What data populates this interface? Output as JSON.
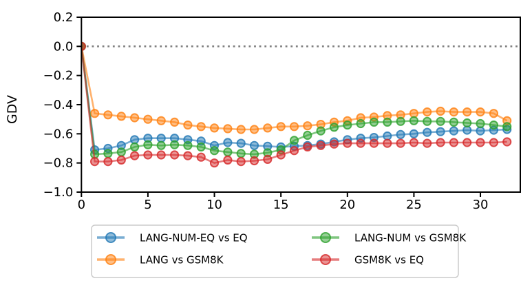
{
  "chart_data": {
    "type": "line",
    "ylabel": "GDV",
    "xlabel": "",
    "xlim": [
      0,
      33
    ],
    "ylim": [
      -1.0,
      0.2
    ],
    "x_ticks": [
      0,
      5,
      10,
      15,
      20,
      25,
      30
    ],
    "x_tick_labels": [
      "0",
      "5",
      "10",
      "15",
      "20",
      "25",
      "30"
    ],
    "y_ticks": [
      0.2,
      0.0,
      -0.2,
      -0.4,
      -0.6,
      -0.8,
      -1.0
    ],
    "y_tick_labels": [
      "0.2",
      "0.0",
      "−0.2",
      "−0.4",
      "−0.6",
      "−0.8",
      "−1.0"
    ],
    "grid": false,
    "zero_line": {
      "y": 0.0,
      "style": "dotted",
      "color": "#7f7f7f"
    },
    "x": [
      0,
      1,
      2,
      3,
      4,
      5,
      6,
      7,
      8,
      9,
      10,
      11,
      12,
      13,
      14,
      15,
      16,
      17,
      18,
      19,
      20,
      21,
      22,
      23,
      24,
      25,
      26,
      27,
      28,
      29,
      30,
      31,
      32
    ],
    "series": [
      {
        "name": "LANG-NUM-EQ vs EQ",
        "color": "#1f77b4",
        "values": [
          0.0,
          -0.71,
          -0.7,
          -0.68,
          -0.64,
          -0.63,
          -0.63,
          -0.63,
          -0.64,
          -0.65,
          -0.68,
          -0.66,
          -0.665,
          -0.68,
          -0.685,
          -0.69,
          -0.685,
          -0.68,
          -0.67,
          -0.655,
          -0.64,
          -0.63,
          -0.625,
          -0.615,
          -0.605,
          -0.6,
          -0.59,
          -0.585,
          -0.58,
          -0.575,
          -0.58,
          -0.575,
          -0.57
        ]
      },
      {
        "name": "LANG vs GSM8K",
        "color": "#ff7f0e",
        "values": [
          0.0,
          -0.46,
          -0.47,
          -0.48,
          -0.49,
          -0.5,
          -0.51,
          -0.52,
          -0.54,
          -0.55,
          -0.56,
          -0.565,
          -0.57,
          -0.57,
          -0.56,
          -0.55,
          -0.55,
          -0.545,
          -0.535,
          -0.52,
          -0.51,
          -0.49,
          -0.485,
          -0.475,
          -0.47,
          -0.46,
          -0.45,
          -0.445,
          -0.45,
          -0.45,
          -0.45,
          -0.46,
          -0.51
        ]
      },
      {
        "name": "LANG-NUM vs GSM8K",
        "color": "#2ca02c",
        "values": [
          0.0,
          -0.74,
          -0.735,
          -0.725,
          -0.69,
          -0.675,
          -0.68,
          -0.675,
          -0.68,
          -0.69,
          -0.715,
          -0.725,
          -0.735,
          -0.74,
          -0.73,
          -0.71,
          -0.645,
          -0.61,
          -0.58,
          -0.555,
          -0.54,
          -0.53,
          -0.52,
          -0.52,
          -0.515,
          -0.51,
          -0.515,
          -0.515,
          -0.52,
          -0.525,
          -0.53,
          -0.54,
          -0.55
        ]
      },
      {
        "name": "GSM8K vs EQ",
        "color": "#d62728",
        "values": [
          0.0,
          -0.79,
          -0.79,
          -0.78,
          -0.75,
          -0.745,
          -0.745,
          -0.745,
          -0.75,
          -0.76,
          -0.8,
          -0.78,
          -0.79,
          -0.785,
          -0.775,
          -0.745,
          -0.715,
          -0.69,
          -0.68,
          -0.67,
          -0.665,
          -0.665,
          -0.665,
          -0.665,
          -0.665,
          -0.66,
          -0.665,
          -0.66,
          -0.66,
          -0.66,
          -0.66,
          -0.66,
          -0.655
        ]
      }
    ],
    "legend": {
      "position": "below-axes-center",
      "columns": 2,
      "entries": [
        "LANG-NUM-EQ vs EQ",
        "LANG vs GSM8K",
        "LANG-NUM vs GSM8K",
        "GSM8K vs EQ"
      ]
    },
    "style": {
      "spine_color": "#000000",
      "line_alpha": 0.6,
      "marker_face_alpha": 0.5,
      "marker_edge_alpha": 0.8,
      "legend_border_color": "#cccccc",
      "background": "#ffffff"
    }
  }
}
